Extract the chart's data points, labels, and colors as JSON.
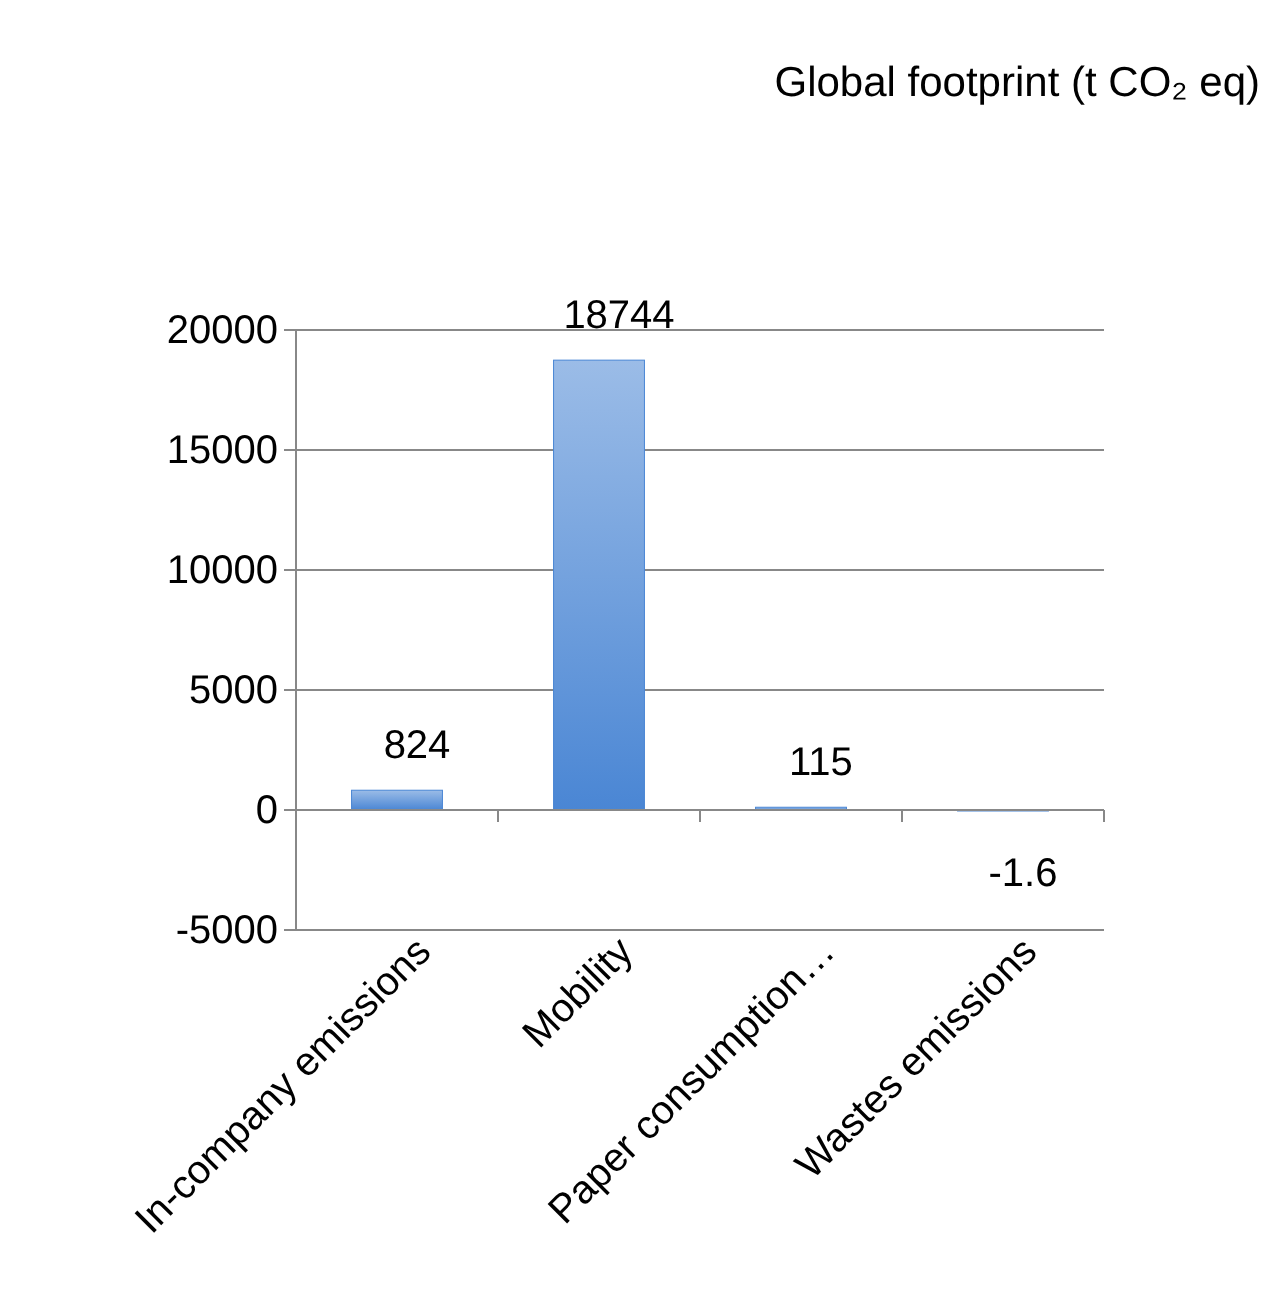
{
  "chart_data": {
    "type": "bar",
    "title": "Global footprint (t CO₂ eq)",
    "categories": [
      "In-company emissions",
      "Mobility",
      "Paper consumption…",
      "Wastes emissions"
    ],
    "values": [
      824,
      18744,
      115,
      -1.6
    ],
    "color": "#4a86d4",
    "data_labels": true,
    "ylim": [
      -5000,
      20000
    ],
    "yticks": [
      -5000,
      0,
      5000,
      10000,
      15000,
      20000
    ],
    "grid": "y"
  }
}
